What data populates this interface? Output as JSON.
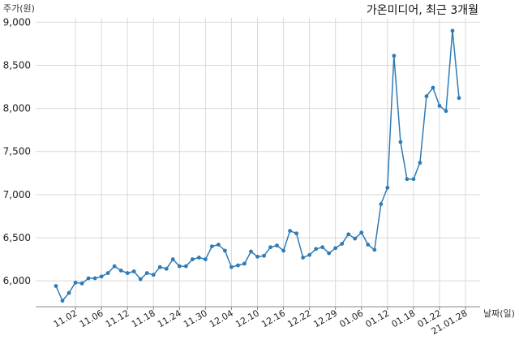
{
  "chart_data": {
    "type": "line",
    "title": "가온미디어, 최근 3개월",
    "ylabel": "주가(원)",
    "xlabel": "날짜(일)",
    "ylim": [
      5700,
      9050
    ],
    "yticks": [
      6000,
      6500,
      7000,
      7500,
      8000,
      8500,
      9000
    ],
    "ytick_labels": [
      "6,000",
      "6,500",
      "7,000",
      "7,500",
      "8,000",
      "8,500",
      "9,000"
    ],
    "xtick_labels": [
      "11.02",
      "11.06",
      "11.12",
      "11.18",
      "11.24",
      "11.30",
      "12.04",
      "12.10",
      "12.16",
      "12.22",
      "12.29",
      "01.06",
      "01.12",
      "01.18",
      "01.22",
      "21.01.28"
    ],
    "xtick_indices": [
      3,
      7,
      11,
      15,
      19,
      23,
      27,
      31,
      35,
      39,
      43,
      47,
      51,
      55,
      59,
      63
    ],
    "grid": true,
    "line_color": "#2f7bb5",
    "series": [
      {
        "values": [
          5940,
          5770,
          5860,
          5980,
          5970,
          6030,
          6030,
          6050,
          6090,
          6170,
          6120,
          6090,
          6110,
          6020,
          6090,
          6070,
          6160,
          6140,
          6250,
          6170,
          6170,
          6250,
          6270,
          6250,
          6400,
          6420,
          6350,
          6160,
          6180,
          6200,
          6340,
          6280,
          6290,
          6390,
          6410,
          6350,
          6580,
          6550,
          6270,
          6300,
          6370,
          6390,
          6320,
          6380,
          6430,
          6540,
          6490,
          6560,
          6420,
          6360,
          6890,
          7080,
          8610,
          7610,
          7180,
          7180,
          7370,
          8140,
          8240,
          8030,
          7970,
          8900,
          8120
        ]
      }
    ]
  }
}
